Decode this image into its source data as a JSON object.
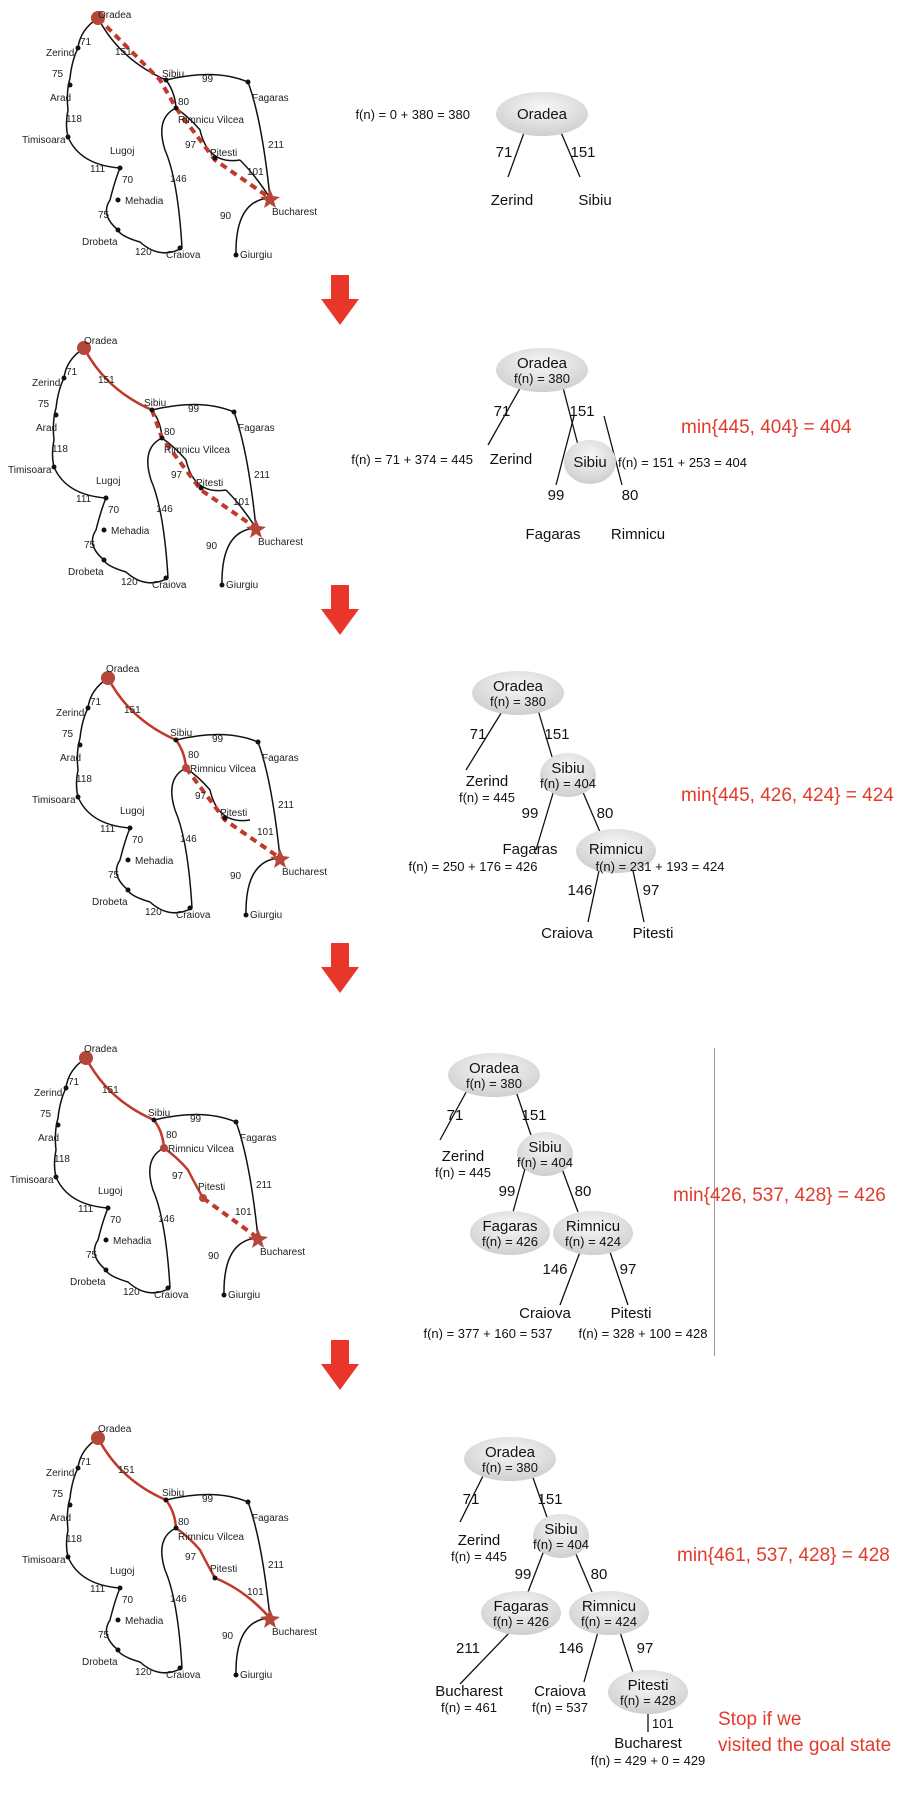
{
  "map": {
    "cities": {
      "oradea": "Oradea",
      "zerind": "Zerind",
      "arad": "Arad",
      "timisoara": "Timisoara",
      "lugoj": "Lugoj",
      "mehadia": "Mehadia",
      "drobeta": "Drobeta",
      "craiova": "Craiova",
      "sibiu": "Sibiu",
      "fagaras": "Fagaras",
      "rimnicu": "Rimnicu Vilcea",
      "pitesti": "Pitesti",
      "bucharest": "Bucharest",
      "giurgiu": "Giurgiu"
    },
    "roads": {
      "or_ze": "71",
      "or_si": "151",
      "ze_ar": "75",
      "ar_ti": "118",
      "ti_lu": "111",
      "lu_me": "70",
      "me_dr": "75",
      "dr_cr": "120",
      "si_fa": "99",
      "si_ri": "80",
      "ri_pi": "97",
      "ri_cr": "146",
      "fa_bu": "211",
      "pi_bu": "101",
      "bu_gi": "90"
    }
  },
  "steps": [
    {
      "nodes": {
        "root": "Oradea",
        "a": "Zerind",
        "b": "Sibiu"
      },
      "edges": {
        "e1": "71",
        "e2": "151"
      },
      "f": {
        "root": "f(n) = 0 + 380 = 380"
      }
    },
    {
      "nodes": {
        "root": "Oradea",
        "a": "Zerind",
        "b": "Sibiu",
        "c": "Fagaras",
        "d": "Rimnicu"
      },
      "edges": {
        "e1": "71",
        "e2": "151",
        "e3": "99",
        "e4": "80"
      },
      "f": {
        "root": "f(n) = 380",
        "a": "f(n) = 71 + 374 = 445",
        "b": "f(n) = 151 + 253 = 404"
      },
      "min": "min{445, 404} = 404"
    },
    {
      "nodes": {
        "root": "Oradea",
        "a": "Zerind",
        "b": "Sibiu",
        "c": "Fagaras",
        "d": "Rimnicu",
        "e": "Craiova",
        "g": "Pitesti"
      },
      "edges": {
        "e1": "71",
        "e2": "151",
        "e3": "99",
        "e4": "80",
        "e5": "146",
        "e6": "97"
      },
      "f": {
        "root": "f(n) = 380",
        "a": "f(n) = 445",
        "b": "f(n) = 404",
        "c": "f(n) = 250 + 176 = 426",
        "d": "f(n) = 231 + 193 = 424"
      },
      "min": "min{445, 426, 424} = 424"
    },
    {
      "nodes": {
        "root": "Oradea",
        "a": "Zerind",
        "b": "Sibiu",
        "c": "Fagaras",
        "d": "Rimnicu",
        "e": "Craiova",
        "g": "Pitesti"
      },
      "edges": {
        "e1": "71",
        "e2": "151",
        "e3": "99",
        "e4": "80",
        "e5": "146",
        "e6": "97"
      },
      "f": {
        "root": "f(n) = 380",
        "a": "f(n) = 445",
        "b": "f(n) = 404",
        "c": "f(n) = 426",
        "d": "f(n) = 424",
        "e": "f(n) = 377 + 160 = 537",
        "g": "f(n) = 328 + 100 = 428"
      },
      "min": "min{426,  537,  428} = 426"
    },
    {
      "nodes": {
        "root": "Oradea",
        "a": "Zerind",
        "b": "Sibiu",
        "c": "Fagaras",
        "d": "Rimnicu",
        "h": "Bucharest",
        "e": "Craiova",
        "g": "Pitesti",
        "i": "Bucharest"
      },
      "edges": {
        "e1": "71",
        "e2": "151",
        "e3": "99",
        "e4": "80",
        "e7": "211",
        "e5": "146",
        "e6": "97",
        "e8": "101"
      },
      "f": {
        "root": "f(n) = 380",
        "a": "f(n) = 445",
        "b": "f(n) = 404",
        "c": "f(n) = 426",
        "d": "f(n) = 424",
        "h": "f(n) = 461",
        "e": "f(n) = 537",
        "g": "f(n) = 428",
        "i": "f(n) = 429 + 0 = 429"
      },
      "min": "min{461,  537,  428} = 428",
      "stop": [
        "Stop if we",
        "visited the goal state"
      ]
    }
  ],
  "colors": {
    "path": "#c0392b",
    "annotation": "#e23b2b",
    "arrow": "#e8372a",
    "node": "#dedede"
  }
}
